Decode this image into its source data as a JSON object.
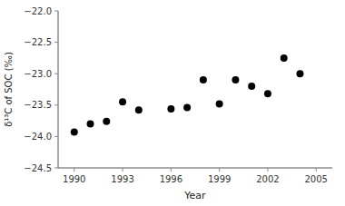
{
  "chart_data": {
    "type": "scatter",
    "x": [
      1990,
      1991,
      1992,
      1993,
      1994,
      1996,
      1997,
      1998,
      1999,
      2000,
      2001,
      2002,
      2003,
      2004
    ],
    "values": [
      -23.93,
      -23.8,
      -23.76,
      -23.45,
      -23.58,
      -23.56,
      -23.54,
      -23.1,
      -23.48,
      -23.1,
      -23.2,
      -23.32,
      -22.75,
      -23.0
    ],
    "xlabel": "Year",
    "ylabel": "δ¹³C of SOC (‰)",
    "xlim": [
      1989.0,
      2006.0
    ],
    "ylim": [
      -24.5,
      -22.0
    ],
    "xticks": [
      1990,
      1993,
      1996,
      1999,
      2002,
      2005
    ],
    "yticks": [
      {
        "value": -24.5,
        "label": "−24.5"
      },
      {
        "value": -24.0,
        "label": "−24.0"
      },
      {
        "value": -23.5,
        "label": "−23.5"
      },
      {
        "value": -23.0,
        "label": "−23.0"
      },
      {
        "value": -22.5,
        "label": "−22.5"
      },
      {
        "value": -22.0,
        "label": "−22.0"
      }
    ],
    "color": "black",
    "grid": false
  }
}
